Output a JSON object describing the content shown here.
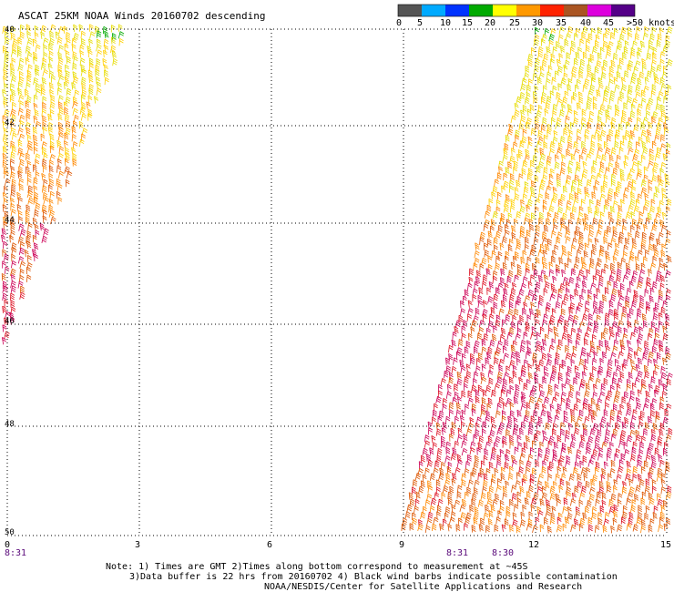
{
  "title": "ASCAT 25KM NOAA Winds 20160702 descending",
  "colorbar": {
    "colors": [
      "#555555",
      "#00aaff",
      "#0033ff",
      "#00aa00",
      "#ffff00",
      "#ff9900",
      "#ff2200",
      "#aa5522",
      "#dd00dd",
      "#550088"
    ],
    "labels": [
      "0",
      "5",
      "10",
      "15",
      "20",
      "25",
      "30",
      "35",
      "40",
      "45",
      ">50 knots"
    ]
  },
  "map": {
    "lat_labels": [
      "40",
      "42",
      "44",
      "46",
      "48",
      "50"
    ],
    "lon_labels": [
      "0",
      "3",
      "6",
      "9",
      "12",
      "15"
    ],
    "orbit_labels": [
      "8:31",
      "8:31",
      "8:30"
    ]
  },
  "notes": [
    "Note: 1) Times are GMT 2)Times along bottom correspond to measurement at ~45S",
    "3)Data buffer is 22 hrs from 20160702 4) Black wind barbs indicate possible contamination",
    "NOAA/NESDIS/Center for Satellite Applications and Research"
  ],
  "barb_colors": {
    "light": "#e6dc00",
    "yellow": "#ffd000",
    "orange": "#ff8800",
    "darkorange": "#dd5500",
    "red": "#dd1122",
    "crimson": "#cc0055",
    "green": "#00aa00"
  }
}
